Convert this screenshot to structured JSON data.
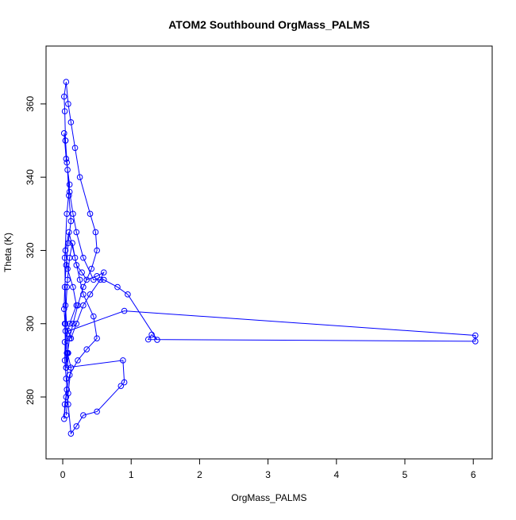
{
  "chart_data": {
    "type": "line",
    "title": "ATOM2 Southbound OrgMass_PALMS",
    "x_label": "OrgMass_PALMS",
    "y_label": "Theta (K)",
    "color": "#0000ff",
    "markers": true,
    "xlim": [
      -0.244,
      6.276
    ],
    "ylim": [
      263.1,
      375.8
    ],
    "xticks": [
      0,
      1,
      2,
      3,
      4,
      5,
      6
    ],
    "yticks": [
      280,
      300,
      320,
      340,
      360
    ],
    "x": [
      0.05,
      0.08,
      0.12,
      0.03,
      0.1,
      0.2,
      0.15,
      0.07,
      0.04,
      0.09,
      0.18,
      0.25,
      0.3,
      0.45,
      0.5,
      0.35,
      0.22,
      0.1,
      0.06,
      0.03,
      0.02,
      0.05,
      0.08,
      0.04,
      0.03,
      0.06,
      0.1,
      0.05,
      0.02,
      0.04,
      0.07,
      0.09,
      0.12,
      0.08,
      0.05,
      0.03,
      0.02,
      0.04,
      0.06,
      0.05,
      0.03,
      0.07,
      0.1,
      0.14,
      0.2,
      0.28,
      0.35,
      0.5,
      0.6,
      0.55,
      0.4,
      0.3,
      0.2,
      0.12,
      0.08,
      0.9,
      6.03,
      6.03,
      1.25,
      1.3,
      1.38,
      0.95,
      0.8,
      0.6,
      0.45,
      0.3,
      0.2,
      0.15,
      0.1,
      0.06,
      0.04,
      0.03,
      0.02,
      0.05,
      0.08,
      0.12,
      0.18,
      0.25,
      0.4,
      0.48,
      0.5,
      0.42,
      0.3,
      0.22,
      0.15,
      0.1,
      0.07,
      0.05,
      0.88,
      0.9,
      0.85,
      0.5,
      0.3,
      0.2,
      0.12,
      0.08,
      0.05,
      0.03,
      0.04,
      0.06
    ],
    "y": [
      275,
      281,
      288,
      295,
      300,
      305,
      310,
      315,
      320,
      325,
      318,
      312,
      308,
      302,
      296,
      293,
      290,
      286,
      282,
      278,
      274,
      280,
      292,
      305,
      318,
      330,
      338,
      345,
      352,
      350,
      342,
      335,
      328,
      322,
      316,
      310,
      304,
      298,
      292,
      288,
      300,
      312,
      318,
      322,
      316,
      314,
      312,
      313,
      314,
      312,
      308,
      305,
      300,
      296,
      298,
      303.5,
      296.8,
      295.2,
      295.7,
      297,
      295.6,
      308,
      310,
      312,
      312,
      318,
      325,
      330,
      336,
      344,
      350,
      358,
      362,
      366,
      360,
      355,
      348,
      340,
      330,
      325,
      320,
      315,
      310,
      305,
      300,
      296,
      292,
      288,
      290,
      284,
      283,
      276,
      275,
      272,
      270,
      278,
      285,
      290,
      300,
      310
    ]
  }
}
